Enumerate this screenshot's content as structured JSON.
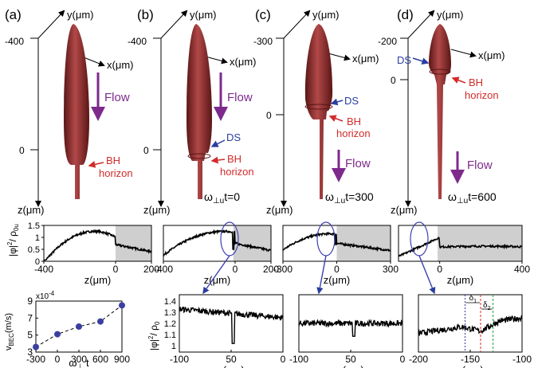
{
  "labels": {
    "panels": [
      "(a)",
      "(b)",
      "(c)",
      "(d)"
    ],
    "y_axis": "y(μm)",
    "x_axis": "x(μm)",
    "z_axis": "z(μm)",
    "flow": "Flow",
    "ds": "DS",
    "bh1": "BH",
    "bh2": "horizon",
    "omega": "ω",
    "perp_u": "⊥u",
    "t0": "t=0",
    "t300": "t=300",
    "t600": "t=600",
    "density_main": "|φ|",
    "density_main_sup": "2",
    "density_main_den": "/ ρ",
    "density_main_sub": "0u",
    "density_zoom": "|φ|",
    "density_zoom_sup": "2",
    "density_zoom_den": "/ ρ",
    "density_zoom_sub": "0",
    "vbec_exp": "x10",
    "vbec_exp_sup": "-4",
    "vbec_ylabel": "v",
    "vbec_ylabel_sub": "BEC",
    "vbec_ylabel_unit": "(m/s)",
    "vbec_xlabel": "ω",
    "vbec_xlabel_sub": "⊥",
    "vbec_xlabel_t": "t",
    "delta1": "δ",
    "delta1_sub": "1",
    "delta2": "δ",
    "delta2_sub": "2"
  },
  "panel_ticks": {
    "a": [
      "-400",
      "0"
    ],
    "b": [
      "-400",
      "0"
    ],
    "c": [
      "-300",
      "0"
    ],
    "d": [
      "-200",
      "0"
    ]
  },
  "colors": {
    "cigar": "#8b2a2a",
    "cigar_light": "#b95353",
    "flow_arrow": "#7d2a8c",
    "ds": "#2b3da0",
    "bh": "#d32b2b",
    "marker": "#3b3fa0",
    "shade": "#cfcfcf",
    "link": "#3d3fb0",
    "delta_blue": "#2b3da0",
    "delta_red": "#d32b2b",
    "delta_green": "#2e9a2e"
  },
  "chart_data": [
    {
      "type": "line",
      "name": "strip-a",
      "xlim": [
        -400,
        200
      ],
      "ylim": [
        0,
        1.5
      ],
      "xticks": [
        "-400",
        "0",
        "200"
      ],
      "yticks": [
        "0",
        "0.5",
        "1",
        "1.5"
      ],
      "shade_from": 0
    },
    {
      "type": "line",
      "name": "strip-b",
      "xlim": [
        -400,
        200
      ],
      "ylim": [
        0,
        1.5
      ],
      "xticks": [
        "-400",
        "0",
        "200"
      ],
      "shade_from": -10
    },
    {
      "type": "line",
      "name": "strip-c",
      "xlim": [
        -300,
        300
      ],
      "ylim": [
        0,
        1.5
      ],
      "xticks": [
        "-300",
        "0",
        "300"
      ],
      "shade_from": 0
    },
    {
      "type": "line",
      "name": "strip-d",
      "xlim": [
        -200,
        400
      ],
      "ylim": [
        0,
        1.5
      ],
      "xticks": [
        "0",
        "400"
      ],
      "shade_from": -10
    },
    {
      "type": "scatter",
      "name": "vbec",
      "xlabel": "ω⊥ t",
      "ylabel": "vBEC (m/s)",
      "x": [
        -300,
        0,
        300,
        600,
        900
      ],
      "y": [
        3.6,
        5.1,
        6.0,
        6.6,
        8.5
      ],
      "xlim": [
        -300,
        900
      ],
      "ylim": [
        3,
        9
      ],
      "xticks": [
        "-300",
        "0",
        "300",
        "600",
        "900"
      ],
      "yticks": [
        "3",
        "5",
        "7",
        "9"
      ]
    },
    {
      "type": "line",
      "name": "zoom-b",
      "xlim": [
        -100,
        0
      ],
      "ylim": [
        1.0,
        1.4
      ],
      "xticks": [
        "-100",
        "50",
        "0"
      ],
      "yticks": [
        "1.1",
        "1.3"
      ],
      "ytick_labels": [
        "1.4",
        "1.3",
        "1.2",
        "1.1",
        "1"
      ],
      "dip_at": -48
    },
    {
      "type": "line",
      "name": "zoom-c",
      "xlim": [
        -100,
        0
      ],
      "ylim": [
        1.0,
        1.4
      ],
      "xticks": [
        "-100",
        "50",
        "0"
      ],
      "dip_at": -47
    },
    {
      "type": "line",
      "name": "zoom-d",
      "xlim": [
        -200,
        -100
      ],
      "ylim": [
        1.0,
        1.4
      ],
      "xticks": [
        "-200",
        "-150",
        "-100"
      ]
    }
  ]
}
